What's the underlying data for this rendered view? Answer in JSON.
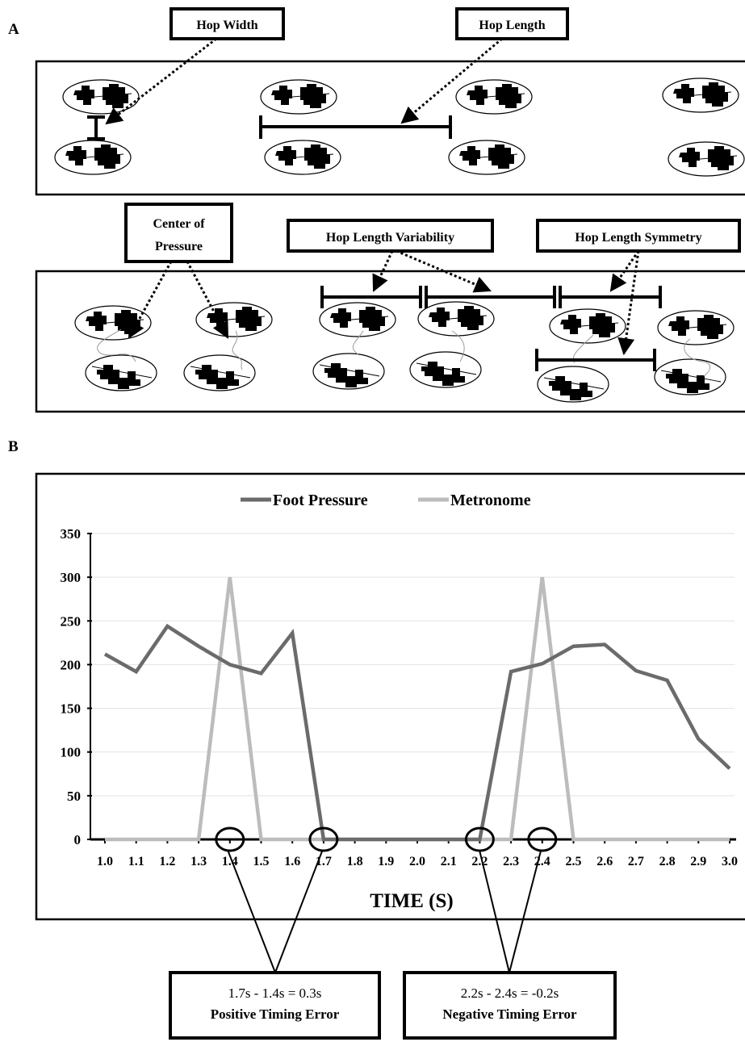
{
  "panel_a": {
    "label": "A",
    "callouts": {
      "hop_width": "Hop Width",
      "hop_length": "Hop Length",
      "center_of_pressure_line1": "Center of",
      "center_of_pressure_line2": "Pressure",
      "hop_length_variability": "Hop Length Variability",
      "hop_length_symmetry": "Hop Length Symmetry"
    }
  },
  "panel_b": {
    "label": "B",
    "positive_box": {
      "equation": "1.7s - 1.4s = 0.3s",
      "title": "Positive Timing Error"
    },
    "negative_box": {
      "equation": "2.2s - 2.4s = -0.2s",
      "title": "Negative Timing Error"
    }
  },
  "colors": {
    "foot_pressure": "#6b6b6b",
    "metronome": "#bcbcbc",
    "grid": "#e2e2e2"
  },
  "chart_data": {
    "type": "line",
    "title": "",
    "xlabel": "TIME (S)",
    "ylabel": "",
    "x": [
      1.0,
      1.1,
      1.2,
      1.3,
      1.4,
      1.5,
      1.6,
      1.7,
      1.8,
      1.9,
      2.0,
      2.1,
      2.2,
      2.3,
      2.4,
      2.5,
      2.6,
      2.7,
      2.8,
      2.9,
      3.0
    ],
    "x_tick_labels": [
      "1.0",
      "1.1",
      "1.2",
      "1.3",
      "1.4",
      "1.5",
      "1.6",
      "1.7",
      "1.8",
      "1.9",
      "2.0",
      "2.1",
      "2.2",
      "2.3",
      "2.4",
      "2.5",
      "2.6",
      "2.7",
      "2.8",
      "2.9",
      "3.0"
    ],
    "y_ticks": [
      0,
      50,
      100,
      150,
      200,
      250,
      300,
      350
    ],
    "ylim": [
      0,
      350
    ],
    "xlim": [
      1.0,
      3.0
    ],
    "grid": true,
    "legend_position": "top-center",
    "series": [
      {
        "name": "Foot Pressure",
        "points": [
          [
            1.0,
            212
          ],
          [
            1.1,
            192
          ],
          [
            1.2,
            244
          ],
          [
            1.3,
            221
          ],
          [
            1.4,
            200
          ],
          [
            1.5,
            190
          ],
          [
            1.6,
            236
          ],
          [
            1.7,
            0
          ],
          [
            1.8,
            0
          ],
          [
            1.9,
            0
          ],
          [
            2.0,
            0
          ],
          [
            2.1,
            0
          ],
          [
            2.2,
            0
          ],
          [
            2.3,
            192
          ],
          [
            2.4,
            201
          ],
          [
            2.5,
            221
          ],
          [
            2.6,
            223
          ],
          [
            2.7,
            193
          ],
          [
            2.8,
            182
          ],
          [
            2.9,
            115
          ],
          [
            3.0,
            81
          ]
        ]
      },
      {
        "name": "Metronome",
        "points": [
          [
            1.0,
            0
          ],
          [
            1.1,
            0
          ],
          [
            1.2,
            0
          ],
          [
            1.3,
            0
          ],
          [
            1.4,
            300
          ],
          [
            1.5,
            0
          ],
          [
            1.6,
            0
          ],
          [
            1.7,
            0
          ],
          [
            1.8,
            0
          ],
          [
            1.9,
            0
          ],
          [
            2.0,
            0
          ],
          [
            2.1,
            0
          ],
          [
            2.2,
            0
          ],
          [
            2.3,
            0
          ],
          [
            2.4,
            300
          ],
          [
            2.5,
            0
          ],
          [
            2.6,
            0
          ],
          [
            2.7,
            0
          ],
          [
            2.8,
            0
          ],
          [
            2.9,
            0
          ],
          [
            3.0,
            0
          ]
        ]
      }
    ],
    "circled_x": [
      1.4,
      1.7,
      2.2,
      2.4
    ]
  }
}
